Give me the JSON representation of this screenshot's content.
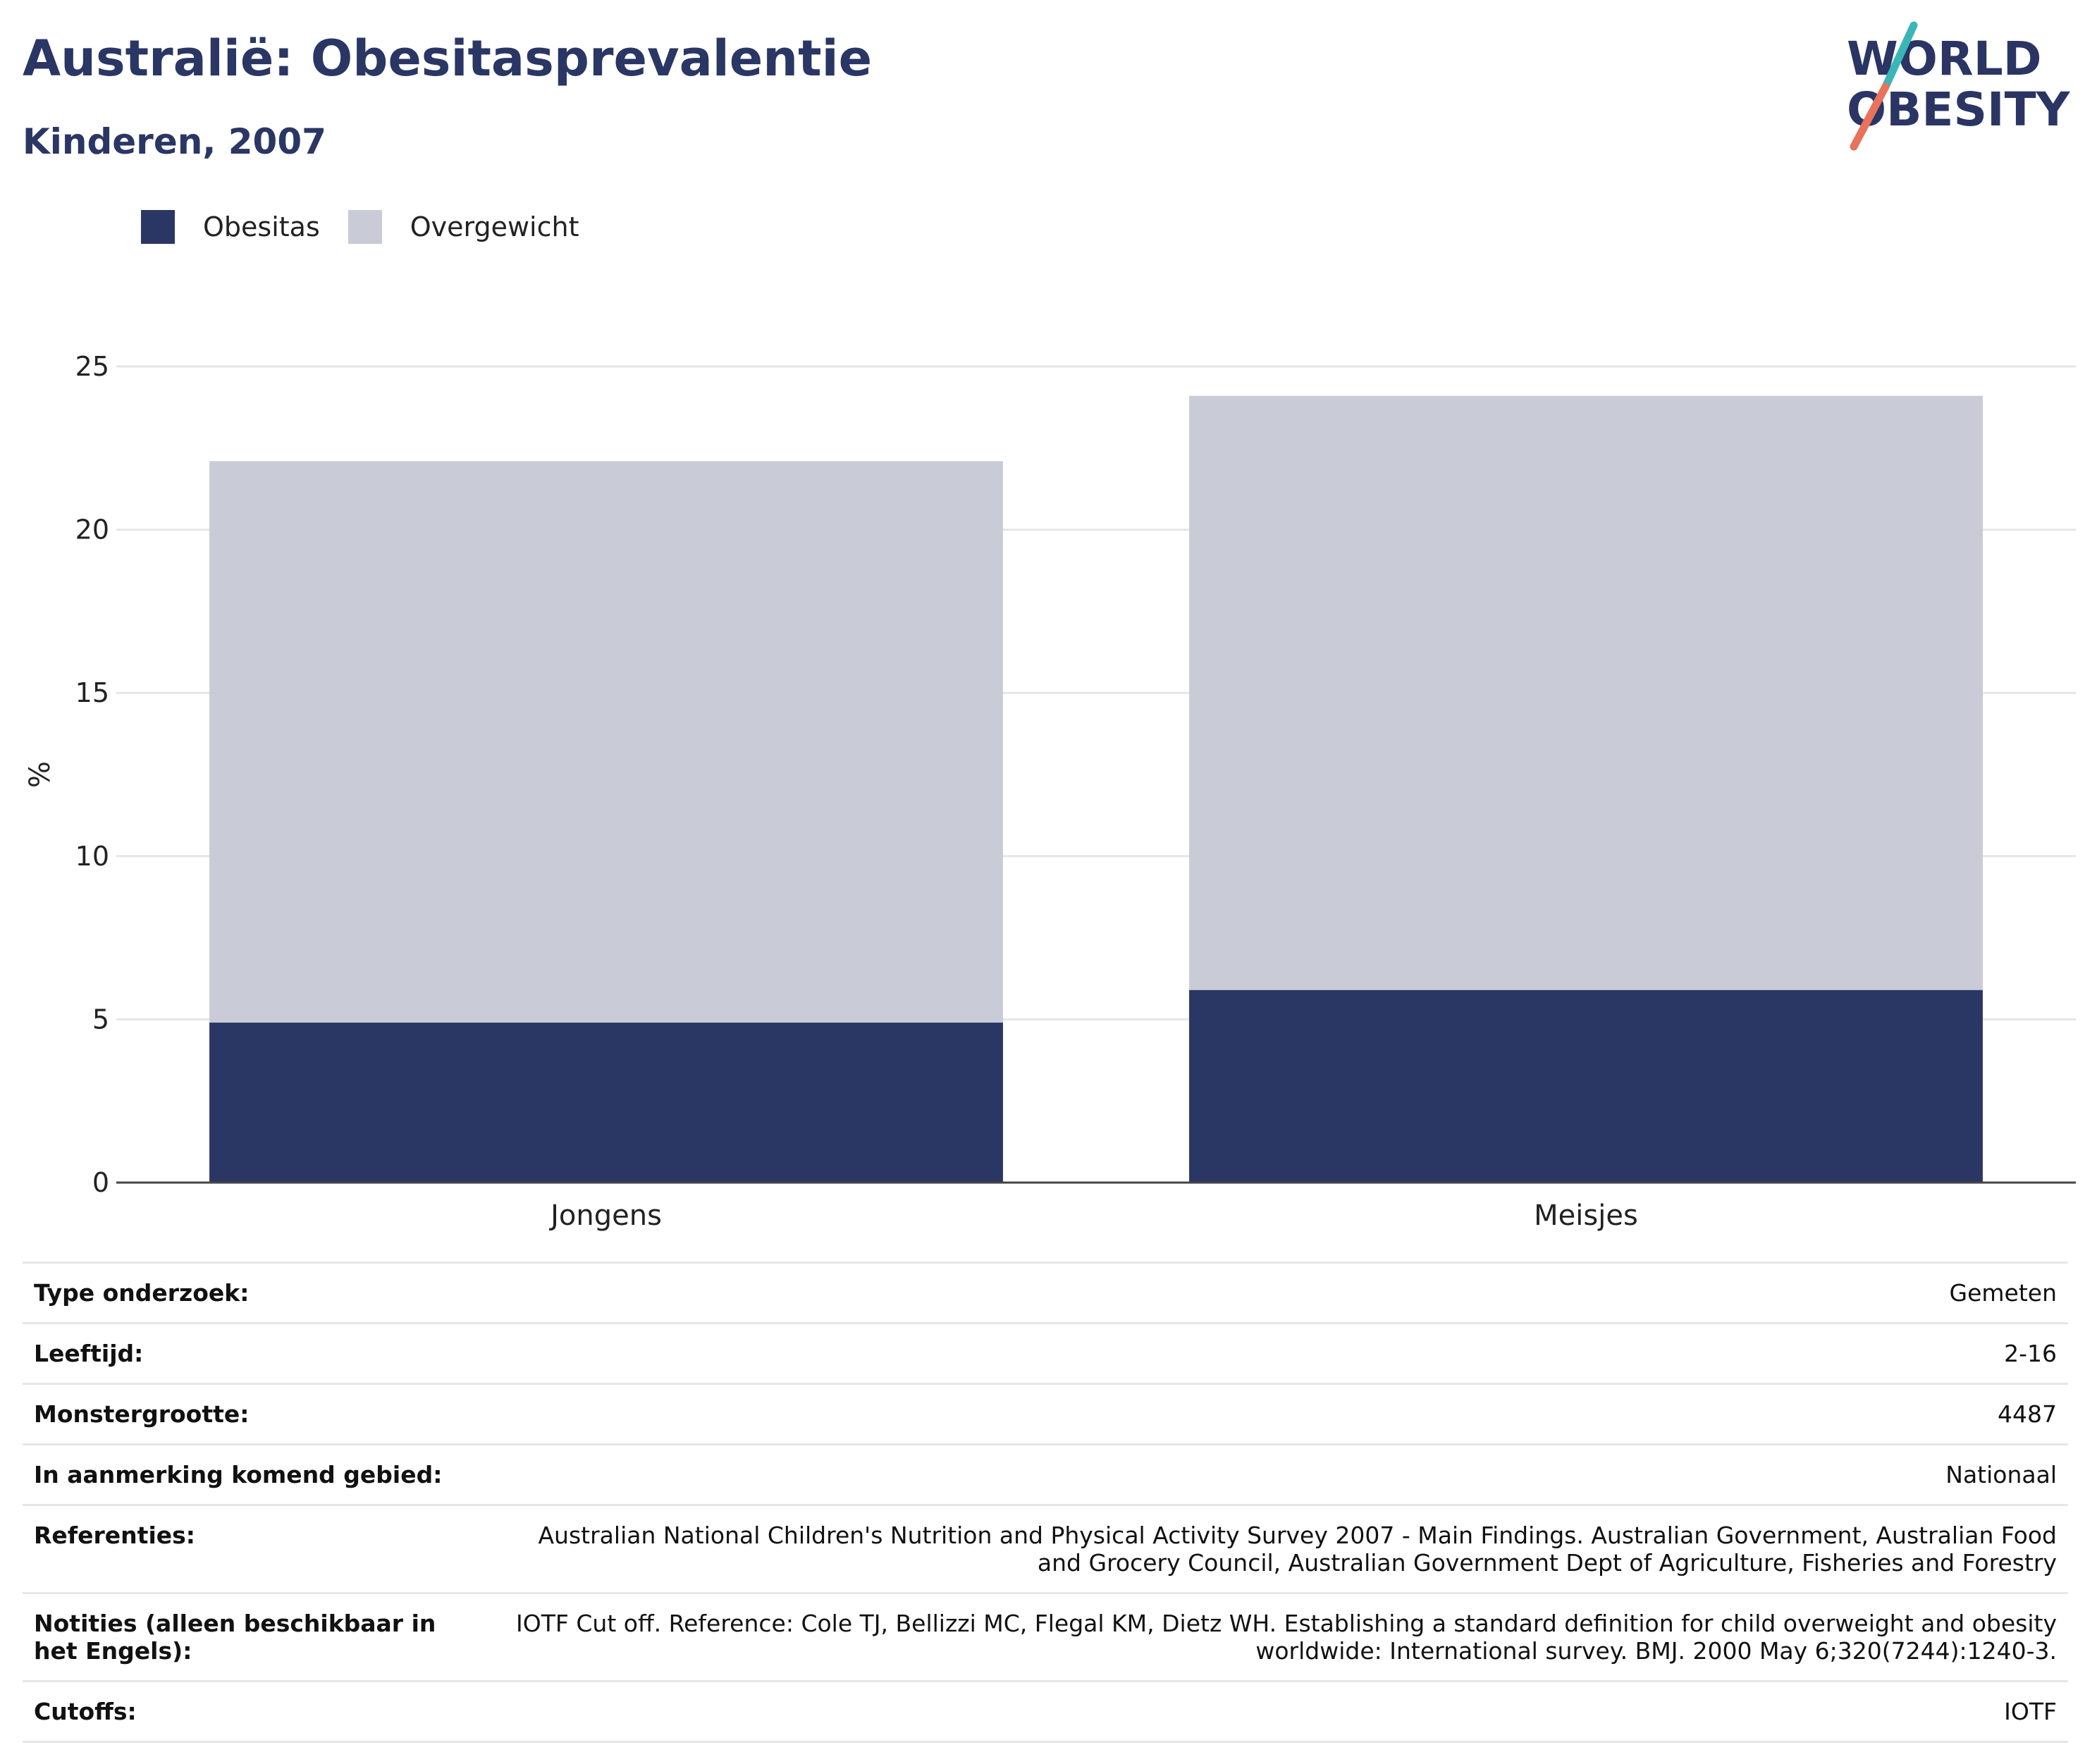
{
  "header": {
    "title": "Australië: Obesitasprevalentie",
    "subtitle": "Kinderen, 2007"
  },
  "logo": {
    "line1": "WORLD",
    "line2": "OBESITY",
    "colors": {
      "text": "#2a3564",
      "slash_top": "#3ab5b8",
      "slash_bottom": "#e8725c"
    }
  },
  "legend": [
    {
      "label": "Obesitas",
      "color": "#2a3664"
    },
    {
      "label": "Overgewicht",
      "color": "#c9cbd6"
    }
  ],
  "chart_data": {
    "type": "bar",
    "stacked": true,
    "categories": [
      "Jongens",
      "Meisjes"
    ],
    "series": [
      {
        "name": "Obesitas",
        "values": [
          4.9,
          5.9
        ],
        "color": "#2a3664"
      },
      {
        "name": "Overgewicht",
        "values": [
          17.2,
          18.2
        ],
        "color": "#c9cbd6"
      }
    ],
    "ylabel": "%",
    "ylim": [
      0,
      25
    ],
    "yticks": [
      0,
      5,
      10,
      15,
      20,
      25
    ],
    "grid": true,
    "legend_position": "top-left"
  },
  "info": [
    {
      "label": "Type onderzoek:",
      "value": "Gemeten"
    },
    {
      "label": "Leeftijd:",
      "value": "2-16"
    },
    {
      "label": "Monstergrootte:",
      "value": "4487"
    },
    {
      "label": "In aanmerking komend gebied:",
      "value": "Nationaal"
    },
    {
      "label": "Referenties:",
      "value": "Australian National Children's Nutrition and Physical Activity Survey 2007 - Main Findings. Australian Government, Australian Food and Grocery Council, Australian Government Dept of Agriculture, Fisheries and Forestry"
    },
    {
      "label": "Notities (alleen beschikbaar in het Engels):",
      "value": "IOTF Cut off. Reference: Cole TJ, Bellizzi MC, Flegal KM, Dietz WH. Establishing a standard definition for child overweight and obesity worldwide: International survey. BMJ. 2000 May 6;320(7244):1240-3."
    },
    {
      "label": "Cutoffs:",
      "value": "IOTF"
    }
  ]
}
